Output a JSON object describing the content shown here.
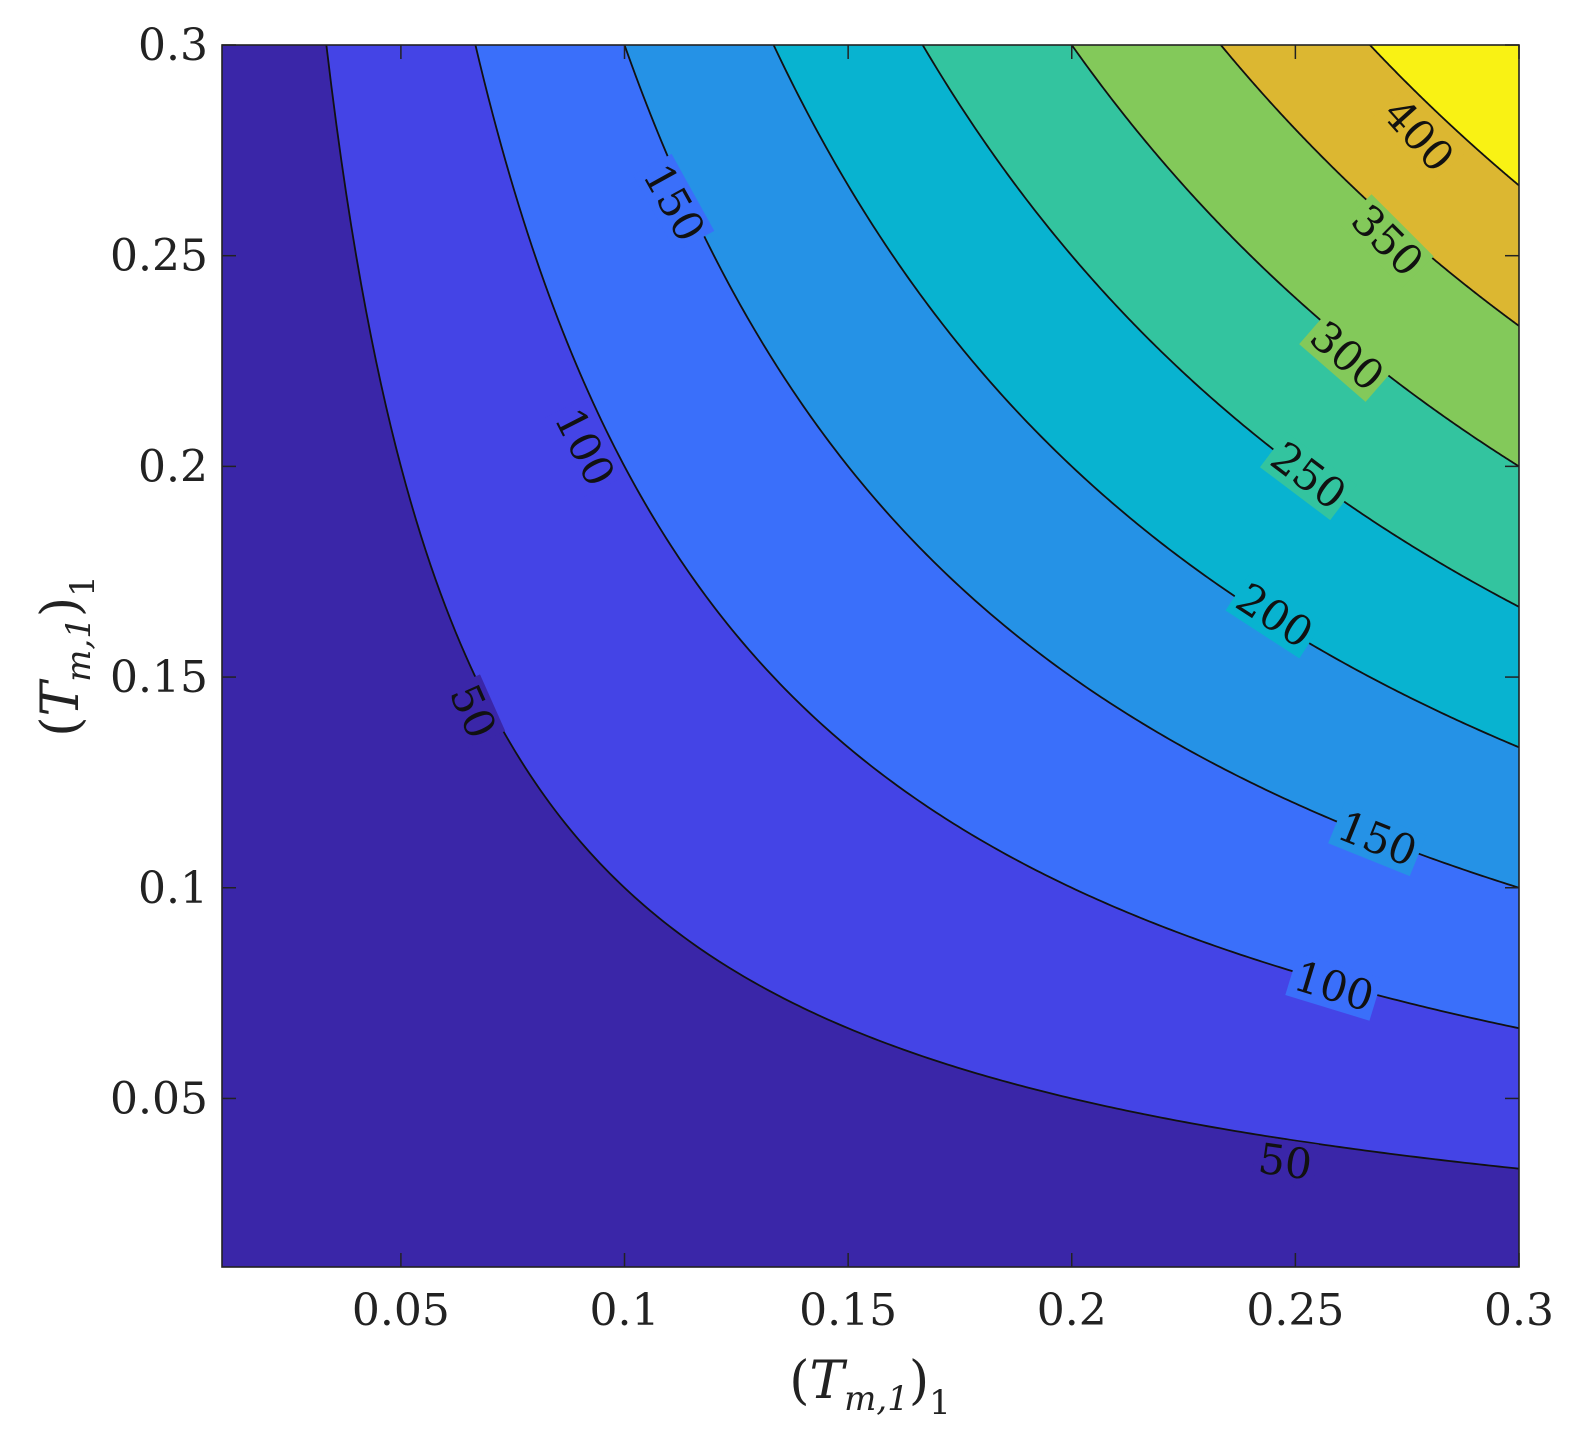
{
  "chart_data": {
    "type": "contour",
    "title": "",
    "xlabel": {
      "open": "(",
      "var": "T",
      "sub": "m,1",
      "close": ")",
      "outer_sub": "1"
    },
    "ylabel": {
      "open": "(",
      "var": "T",
      "sub": "m,1",
      "close": ")",
      "outer_sub": "1"
    },
    "xlim": [
      0.01,
      0.3
    ],
    "ylim": [
      0.01,
      0.3
    ],
    "x_ticks": [
      0.05,
      0.1,
      0.15,
      0.2,
      0.25,
      0.3
    ],
    "x_tick_labels": [
      "0.05",
      "0.1",
      "0.15",
      "0.2",
      "0.25",
      "0.3"
    ],
    "y_ticks": [
      0.05,
      0.1,
      0.15,
      0.2,
      0.25,
      0.3
    ],
    "y_tick_labels": [
      "0.05",
      "0.1",
      "0.15",
      "0.2",
      "0.25",
      "0.3"
    ],
    "grid": false,
    "colormap": "parula",
    "levels": [
      50,
      100,
      150,
      200,
      250,
      300,
      350,
      400
    ],
    "fill_colors": [
      "#3a26a8",
      "#4444e6",
      "#3a6ffa",
      "#2592e6",
      "#08b3d0",
      "#33c49f",
      "#83c95a",
      "#dcb731",
      "#f9f214"
    ],
    "surface": {
      "form": "z = k * x * y",
      "k": 5000
    },
    "contour_labels": [
      {
        "level": 50,
        "text": "50",
        "x": 0.066,
        "y": 0.1418,
        "angle": 66
      },
      {
        "level": 100,
        "text": "100",
        "x": 0.091,
        "y": 0.2045,
        "angle": 63
      },
      {
        "level": 150,
        "text": "150",
        "x": 0.111,
        "y": 0.2625,
        "angle": 61
      },
      {
        "level": 50,
        "text": "50",
        "x": 0.2477,
        "y": 0.0349,
        "angle": 8
      },
      {
        "level": 100,
        "text": "100",
        "x": 0.2586,
        "y": 0.0765,
        "angle": 17
      },
      {
        "level": 150,
        "text": "150",
        "x": 0.2683,
        "y": 0.1115,
        "angle": 22
      },
      {
        "level": 200,
        "text": "200",
        "x": 0.2453,
        "y": 0.1645,
        "angle": 33
      },
      {
        "level": 250,
        "text": "250",
        "x": 0.2529,
        "y": 0.1977,
        "angle": 37
      },
      {
        "level": 300,
        "text": "300",
        "x": 0.2615,
        "y": 0.2261,
        "angle": 41
      },
      {
        "level": 350,
        "text": "350",
        "x": 0.2705,
        "y": 0.2535,
        "angle": 45
      },
      {
        "level": 400,
        "text": "400",
        "x": 0.2775,
        "y": 0.2785,
        "angle": 48
      }
    ]
  }
}
